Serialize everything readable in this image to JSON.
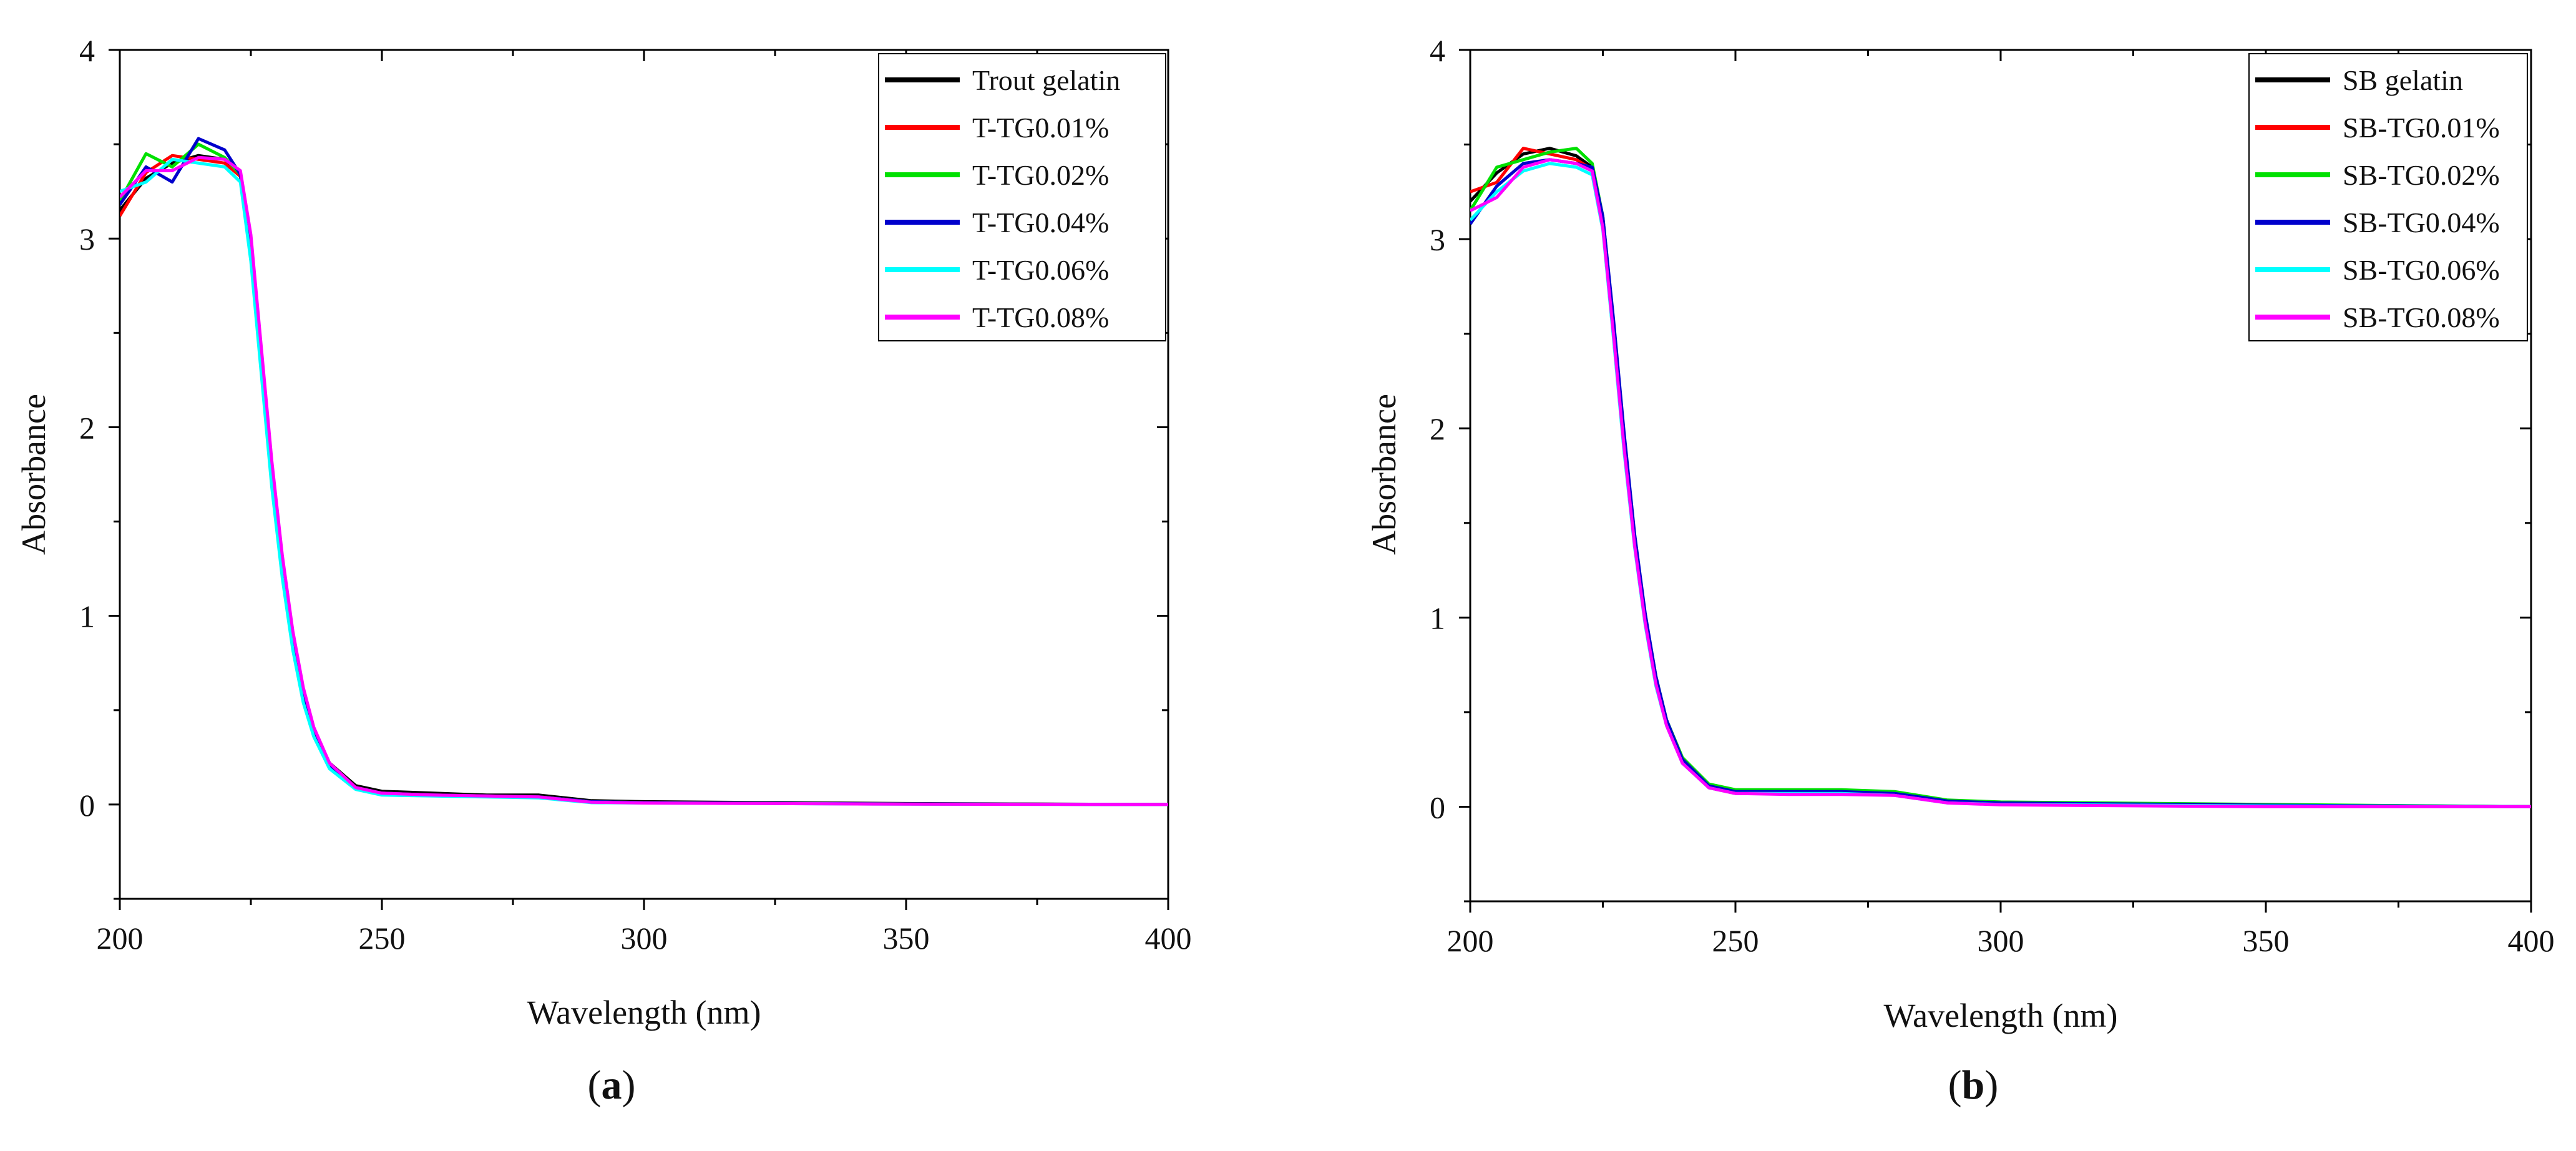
{
  "chart_data": [
    {
      "type": "line",
      "panel_label": "a",
      "xlabel": "Wavelength (nm)",
      "ylabel": "Absorbance",
      "xlim": [
        200,
        400
      ],
      "ylim": [
        -0.5,
        4
      ],
      "xticks": [
        200,
        250,
        300,
        350,
        400
      ],
      "yticks": [
        0,
        1,
        2,
        3,
        4
      ],
      "legend_position": "top-right",
      "x": [
        200,
        205,
        210,
        215,
        220,
        223,
        225,
        227,
        229,
        231,
        233,
        235,
        237,
        240,
        245,
        250,
        260,
        270,
        280,
        290,
        300,
        350,
        400
      ],
      "series": [
        {
          "name": "Trout gelatin",
          "color": "#000000",
          "values": [
            3.15,
            3.32,
            3.4,
            3.44,
            3.42,
            3.35,
            3.0,
            2.4,
            1.8,
            1.3,
            0.9,
            0.6,
            0.4,
            0.22,
            0.1,
            0.07,
            0.06,
            0.05,
            0.05,
            0.02,
            0.015,
            0.005,
            0.0
          ]
        },
        {
          "name": "T-TG0.01%",
          "color": "#ff0000",
          "values": [
            3.12,
            3.35,
            3.44,
            3.42,
            3.4,
            3.33,
            2.95,
            2.35,
            1.75,
            1.25,
            0.86,
            0.57,
            0.38,
            0.2,
            0.09,
            0.06,
            0.05,
            0.045,
            0.04,
            0.015,
            0.01,
            0.003,
            0.0
          ]
        },
        {
          "name": "T-TG0.02%",
          "color": "#00e000",
          "values": [
            3.2,
            3.45,
            3.38,
            3.5,
            3.43,
            3.34,
            2.97,
            2.37,
            1.77,
            1.27,
            0.88,
            0.58,
            0.39,
            0.21,
            0.09,
            0.06,
            0.05,
            0.045,
            0.04,
            0.015,
            0.01,
            0.003,
            0.0
          ]
        },
        {
          "name": "T-TG0.04%",
          "color": "#0000cc",
          "values": [
            3.18,
            3.38,
            3.3,
            3.53,
            3.47,
            3.34,
            2.96,
            2.36,
            1.76,
            1.26,
            0.87,
            0.58,
            0.38,
            0.21,
            0.09,
            0.06,
            0.05,
            0.045,
            0.04,
            0.015,
            0.01,
            0.003,
            0.0
          ]
        },
        {
          "name": "T-TG0.06%",
          "color": "#00ffff",
          "values": [
            3.25,
            3.3,
            3.42,
            3.4,
            3.38,
            3.3,
            2.88,
            2.28,
            1.68,
            1.2,
            0.82,
            0.54,
            0.36,
            0.19,
            0.08,
            0.05,
            0.045,
            0.04,
            0.035,
            0.01,
            0.008,
            0.002,
            0.0
          ]
        },
        {
          "name": "T-TG0.08%",
          "color": "#ff00ff",
          "values": [
            3.22,
            3.36,
            3.36,
            3.43,
            3.42,
            3.36,
            3.02,
            2.42,
            1.82,
            1.32,
            0.92,
            0.62,
            0.41,
            0.22,
            0.09,
            0.06,
            0.05,
            0.045,
            0.04,
            0.012,
            0.008,
            0.002,
            0.0
          ]
        }
      ]
    },
    {
      "type": "line",
      "panel_label": "b",
      "xlabel": "Wavelength (nm)",
      "ylabel": "Absorbance",
      "xlim": [
        200,
        400
      ],
      "ylim": [
        -0.5,
        4
      ],
      "xticks": [
        200,
        250,
        300,
        350,
        400
      ],
      "yticks": [
        0,
        1,
        2,
        3,
        4
      ],
      "legend_position": "top-right",
      "x": [
        200,
        205,
        210,
        215,
        220,
        223,
        225,
        227,
        229,
        231,
        233,
        235,
        237,
        240,
        245,
        250,
        260,
        270,
        280,
        290,
        300,
        350,
        400
      ],
      "series": [
        {
          "name": "SB gelatin",
          "color": "#000000",
          "values": [
            3.2,
            3.35,
            3.45,
            3.48,
            3.44,
            3.38,
            3.1,
            2.55,
            1.95,
            1.42,
            1.0,
            0.68,
            0.45,
            0.25,
            0.11,
            0.08,
            0.08,
            0.08,
            0.07,
            0.03,
            0.02,
            0.01,
            0.0
          ]
        },
        {
          "name": "SB-TG0.01%",
          "color": "#ff0000",
          "values": [
            3.25,
            3.3,
            3.48,
            3.45,
            3.42,
            3.37,
            3.08,
            2.52,
            1.92,
            1.4,
            0.98,
            0.66,
            0.44,
            0.24,
            0.1,
            0.07,
            0.07,
            0.07,
            0.065,
            0.025,
            0.015,
            0.005,
            0.0
          ]
        },
        {
          "name": "SB-TG0.02%",
          "color": "#00e000",
          "values": [
            3.15,
            3.38,
            3.42,
            3.46,
            3.48,
            3.4,
            3.12,
            2.56,
            1.96,
            1.43,
            1.01,
            0.69,
            0.46,
            0.26,
            0.12,
            0.09,
            0.09,
            0.09,
            0.08,
            0.035,
            0.025,
            0.012,
            0.0
          ]
        },
        {
          "name": "SB-TG0.04%",
          "color": "#0000cc",
          "values": [
            3.08,
            3.28,
            3.4,
            3.42,
            3.4,
            3.38,
            3.12,
            2.58,
            1.98,
            1.44,
            1.02,
            0.69,
            0.46,
            0.25,
            0.11,
            0.08,
            0.08,
            0.08,
            0.07,
            0.03,
            0.02,
            0.008,
            0.0
          ]
        },
        {
          "name": "SB-TG0.06%",
          "color": "#00ffff",
          "values": [
            3.1,
            3.25,
            3.36,
            3.4,
            3.38,
            3.34,
            3.05,
            2.48,
            1.88,
            1.37,
            0.96,
            0.64,
            0.43,
            0.23,
            0.1,
            0.07,
            0.07,
            0.07,
            0.06,
            0.02,
            0.012,
            0.004,
            0.0
          ]
        },
        {
          "name": "SB-TG0.08%",
          "color": "#ff00ff",
          "values": [
            3.15,
            3.22,
            3.38,
            3.42,
            3.4,
            3.36,
            3.06,
            2.5,
            1.9,
            1.38,
            0.97,
            0.65,
            0.43,
            0.23,
            0.1,
            0.07,
            0.065,
            0.065,
            0.06,
            0.02,
            0.01,
            0.0,
            0.0
          ]
        }
      ]
    }
  ]
}
